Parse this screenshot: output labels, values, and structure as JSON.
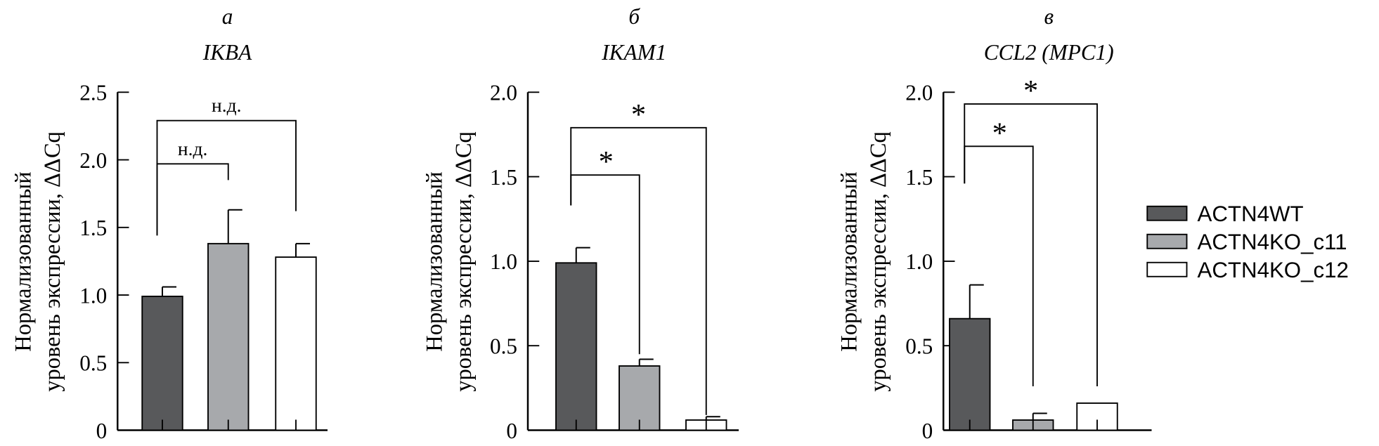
{
  "chart_data": [
    {
      "type": "bar",
      "panel_letter": "а",
      "title": "IKBA",
      "ylabel_lines": [
        "Нормализованный",
        "уровень экспрессии, ΔΔCq"
      ],
      "ylim": [
        0,
        2.5
      ],
      "yticks": [
        0,
        0.5,
        1.0,
        1.5,
        2.0,
        2.5
      ],
      "ytick_labels": [
        "0",
        "0.5",
        "1.0",
        "1.5",
        "2.0",
        "2.5"
      ],
      "categories": [
        "ACTN4WT",
        "ACTN4KO_c11",
        "ACTN4KO_c12"
      ],
      "values": [
        0.99,
        1.38,
        1.28
      ],
      "error_upper": [
        1.06,
        1.63,
        1.38
      ],
      "brackets": [
        {
          "from": 0,
          "to": 1,
          "level": 1.97,
          "left_end": 1.44,
          "right_end": 1.85,
          "label": "н.д.",
          "label_type": "text"
        },
        {
          "from": 0,
          "to": 2,
          "level": 2.29,
          "left_end": 1.44,
          "right_end": 1.62,
          "label": "н.д.",
          "label_type": "text"
        }
      ]
    },
    {
      "type": "bar",
      "panel_letter": "б",
      "title": "IKAM1",
      "ylabel_lines": [
        "Нормализованный",
        "уровень экспрессии, ΔΔCq"
      ],
      "ylim": [
        0,
        2.0
      ],
      "yticks": [
        0,
        0.5,
        1.0,
        1.5,
        2.0
      ],
      "ytick_labels": [
        "0",
        "0.5",
        "1.0",
        "1.5",
        "2.0"
      ],
      "categories": [
        "ACTN4WT",
        "ACTN4KO_c11",
        "ACTN4KO_c12"
      ],
      "values": [
        0.99,
        0.38,
        0.06
      ],
      "error_upper": [
        1.08,
        0.42,
        0.08
      ],
      "brackets": [
        {
          "from": 0,
          "to": 1,
          "level": 1.51,
          "left_end": 1.33,
          "right_end": 0.45,
          "label": "*",
          "label_type": "star"
        },
        {
          "from": 0,
          "to": 2,
          "level": 1.79,
          "left_end": 1.33,
          "right_end": 0.09,
          "label": "*",
          "label_type": "star"
        }
      ]
    },
    {
      "type": "bar",
      "panel_letter": "в",
      "title": "CCL2 (MPC1)",
      "ylabel_lines": [
        "Нормализованный",
        "уровень экспрессии, ΔΔCq"
      ],
      "ylim": [
        0,
        2.0
      ],
      "yticks": [
        0,
        0.5,
        1.0,
        1.5,
        2.0
      ],
      "ytick_labels": [
        "0",
        "0.5",
        "1.0",
        "1.5",
        "2.0"
      ],
      "categories": [
        "ACTN4WT",
        "ACTN4KO_c11",
        "ACTN4KO_c12"
      ],
      "values": [
        0.66,
        0.06,
        0.16
      ],
      "error_upper": [
        0.86,
        0.1,
        0.16
      ],
      "brackets": [
        {
          "from": 0,
          "to": 1,
          "level": 1.68,
          "left_end": 1.46,
          "right_end": 0.26,
          "label": "*",
          "label_type": "star"
        },
        {
          "from": 0,
          "to": 2,
          "level": 1.93,
          "left_end": 1.46,
          "right_end": 0.26,
          "label": "*",
          "label_type": "star"
        }
      ]
    }
  ],
  "legend": {
    "placement": "right",
    "entries": [
      {
        "label": "ACTN4WT",
        "color": "#58595b"
      },
      {
        "label": "ACTN4KO_c11",
        "color": "#a7a9ac"
      },
      {
        "label": "ACTN4KO_c12",
        "color": "#ffffff"
      }
    ]
  }
}
